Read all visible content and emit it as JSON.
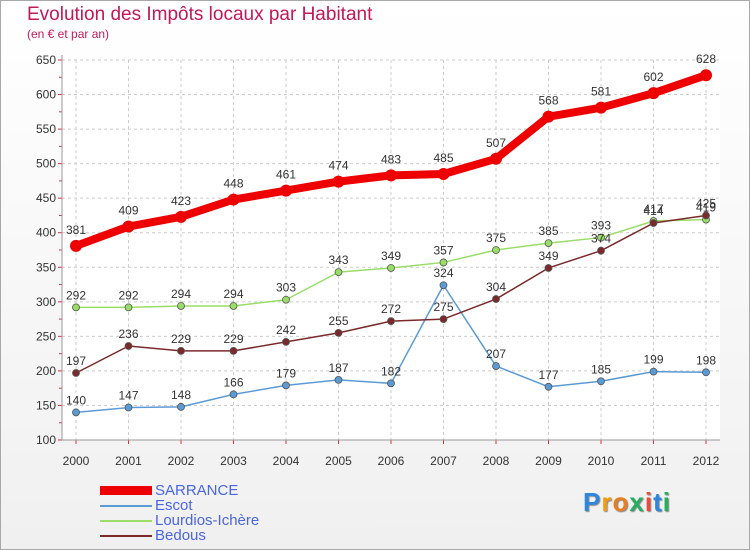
{
  "title": "Evolution des Impôts locaux par Habitant",
  "subtitle": "(en € et par an)",
  "logo": {
    "letters": [
      "P",
      "r",
      "o",
      "x",
      "i",
      "t",
      "i"
    ],
    "colors": [
      "#2e86de",
      "#f39c12",
      "#e67e22",
      "#27ae60",
      "#e74c3c",
      "#2e86de",
      "#27ae60"
    ]
  },
  "chart_data": {
    "type": "line",
    "title": "Evolution des Impôts locaux par Habitant",
    "subtitle": "(en € et par an)",
    "xlabel": "",
    "ylabel": "",
    "ylim": [
      100,
      650
    ],
    "yticks": [
      100,
      150,
      200,
      250,
      300,
      350,
      400,
      450,
      500,
      550,
      600,
      650
    ],
    "grid": true,
    "legend_position": "bottom-left",
    "x": [
      "2000",
      "2001",
      "2002",
      "2003",
      "2004",
      "2005",
      "2006",
      "2007",
      "2008",
      "2009",
      "2010",
      "2011",
      "2012"
    ],
    "series": [
      {
        "name": "SARRANCE",
        "color": "#ee0000",
        "values": [
          381,
          409,
          423,
          448,
          461,
          474,
          483,
          485,
          507,
          568,
          581,
          602,
          628
        ]
      },
      {
        "name": "Escot",
        "color": "#5b9bd5",
        "values": [
          140,
          147,
          148,
          166,
          179,
          187,
          182,
          324,
          207,
          177,
          185,
          199,
          198
        ]
      },
      {
        "name": "Lourdios-Ichère",
        "color": "#99dd66",
        "values": [
          292,
          292,
          294,
          294,
          303,
          343,
          349,
          357,
          375,
          385,
          393,
          417,
          419
        ]
      },
      {
        "name": "Bedous",
        "color": "#7a2a2a",
        "values": [
          197,
          236,
          229,
          229,
          242,
          255,
          272,
          275,
          304,
          349,
          374,
          414,
          425
        ]
      }
    ]
  }
}
